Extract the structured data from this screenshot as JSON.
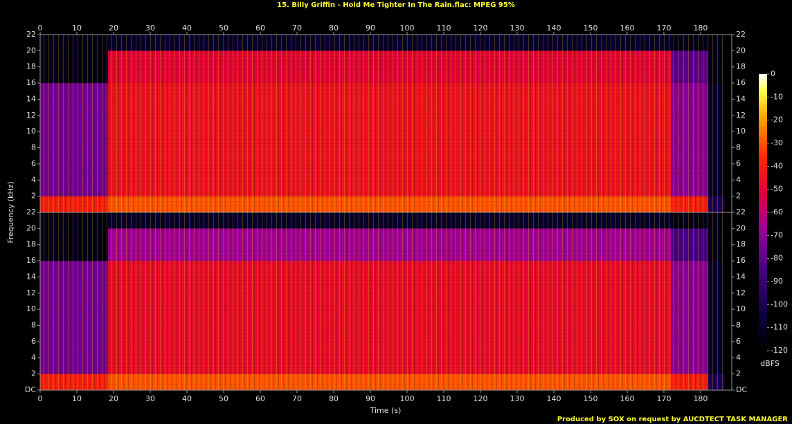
{
  "chart_data": {
    "type": "spectrogram",
    "title": "15. Billy Griffin - Hold Me Tighter In The Rain.flac: MPEG 95%",
    "xlabel": "Time (s)",
    "ylabel": "Frequency (kHz)",
    "xlim": [
      0,
      188.5
    ],
    "xticks": [
      0,
      10,
      20,
      30,
      40,
      50,
      60,
      70,
      80,
      90,
      100,
      110,
      120,
      130,
      140,
      150,
      160,
      170,
      180
    ],
    "ylim": [
      0,
      22
    ],
    "panels": [
      {
        "yticks": [
          2,
          4,
          6,
          8,
          10,
          12,
          14,
          16,
          18,
          20,
          22
        ],
        "x_edges": [
          0,
          18.5,
          172,
          182,
          186.5
        ],
        "y_edges": [
          0,
          2,
          16,
          20,
          22
        ],
        "values": [
          [
            -40,
            -30,
            -40,
            -100
          ],
          [
            -75,
            -45,
            -70,
            -110
          ],
          [
            -115,
            -50,
            -80,
            -115
          ],
          [
            -115,
            -110,
            -115,
            -115
          ]
        ]
      },
      {
        "yticks": [
          {
            "value": 0,
            "label": "DC"
          },
          2,
          4,
          6,
          8,
          10,
          12,
          14,
          16,
          18,
          20,
          22
        ],
        "x_edges": [
          0,
          18.5,
          172,
          182,
          186.5
        ],
        "y_edges": [
          0,
          2,
          16,
          20,
          22
        ],
        "values": [
          [
            -40,
            -30,
            -40,
            -100
          ],
          [
            -75,
            -47,
            -70,
            -110
          ],
          [
            -115,
            -65,
            -85,
            -115
          ],
          [
            -115,
            -110,
            -115,
            -115
          ]
        ]
      }
    ],
    "colorbar": {
      "label": "dBFS",
      "lim": [
        -120,
        0
      ],
      "ticks": [
        0,
        -10,
        -20,
        -30,
        -40,
        -50,
        -60,
        -70,
        -80,
        -90,
        -100,
        -110,
        -120
      ]
    },
    "footer": "Produced by SOX on request by AUCDTECT TASK MANAGER"
  }
}
